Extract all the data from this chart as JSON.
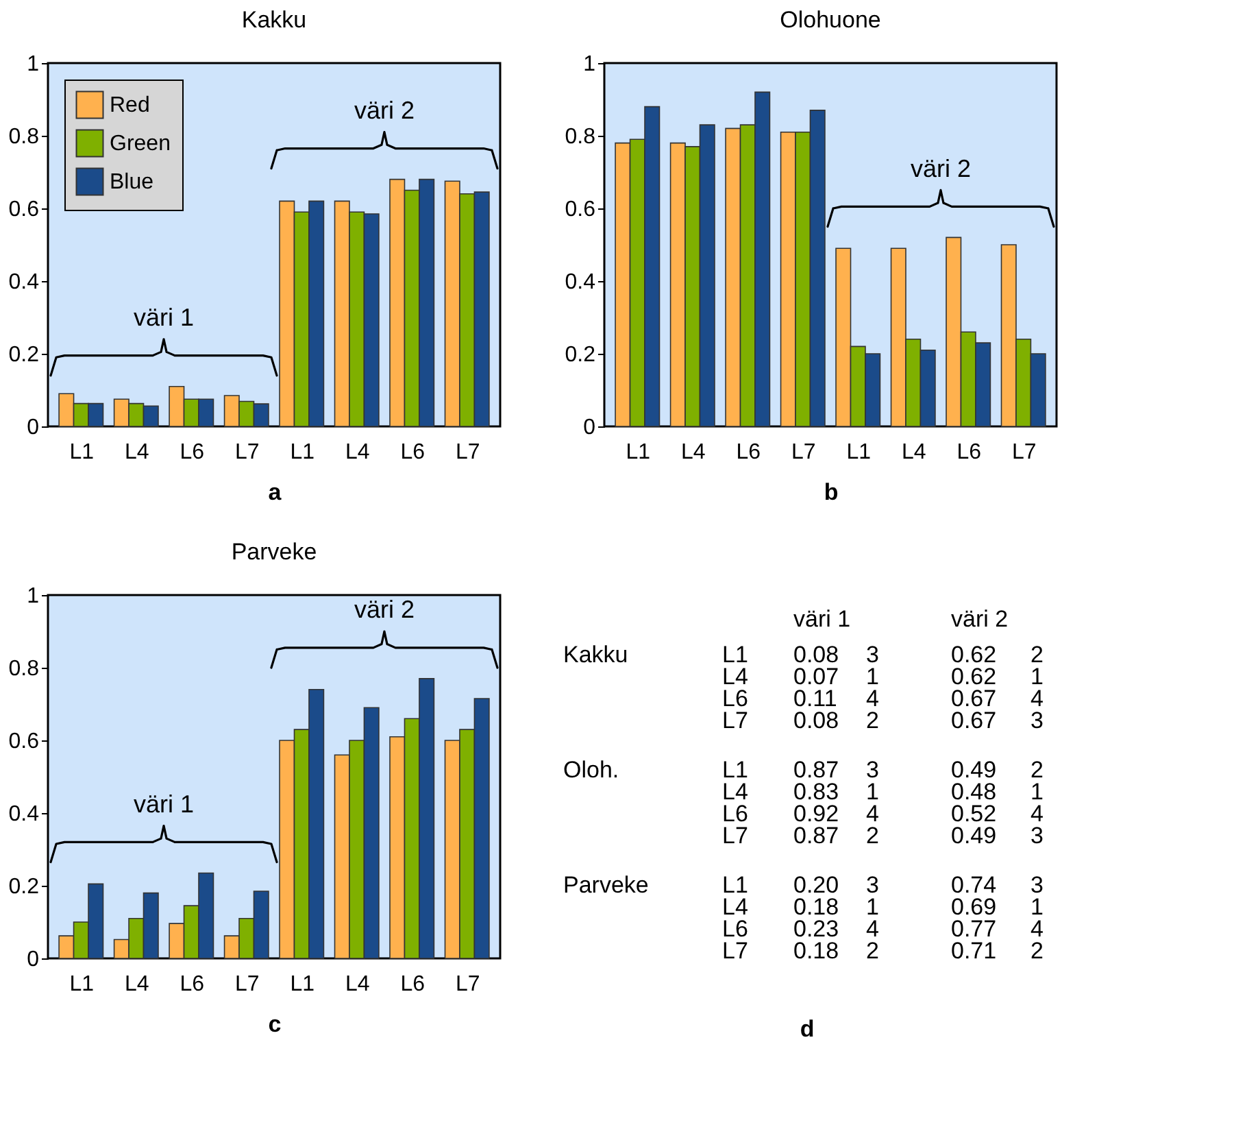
{
  "chart_data": [
    {
      "type": "bar",
      "title": "Kakku",
      "xlabel": "a",
      "categories": [
        "L1",
        "L4",
        "L6",
        "L7",
        "L1",
        "L4",
        "L6",
        "L7"
      ],
      "ylim": [
        0,
        1
      ],
      "yticks": [
        0,
        0.2,
        0.4,
        0.6,
        0.8,
        1
      ],
      "legend": "top left",
      "annotations": [
        "väri 1",
        "väri 2"
      ],
      "series": [
        {
          "name": "Red",
          "color": "#ffb14e",
          "values": [
            0.09,
            0.075,
            0.11,
            0.085,
            0.62,
            0.62,
            0.68,
            0.675
          ]
        },
        {
          "name": "Green",
          "color": "#7fb000",
          "values": [
            0.063,
            0.063,
            0.075,
            0.069,
            0.59,
            0.59,
            0.65,
            0.64
          ]
        },
        {
          "name": "Blue",
          "color": "#1b4b8a",
          "values": [
            0.063,
            0.056,
            0.075,
            0.062,
            0.62,
            0.585,
            0.68,
            0.645
          ]
        }
      ]
    },
    {
      "type": "bar",
      "title": "Olohuone",
      "xlabel": "b",
      "categories": [
        "L1",
        "L4",
        "L6",
        "L7",
        "L1",
        "L4",
        "L6",
        "L7"
      ],
      "ylim": [
        0,
        1
      ],
      "yticks": [
        0,
        0.2,
        0.4,
        0.6,
        0.8,
        1
      ],
      "annotations": [
        "väri 2"
      ],
      "series": [
        {
          "color": "#ffb14e",
          "values": [
            0.78,
            0.78,
            0.82,
            0.81,
            0.49,
            0.49,
            0.52,
            0.5
          ]
        },
        {
          "color": "#7fb000",
          "values": [
            0.79,
            0.77,
            0.83,
            0.81,
            0.22,
            0.24,
            0.26,
            0.24
          ]
        },
        {
          "color": "#1b4b8a",
          "values": [
            0.88,
            0.83,
            0.92,
            0.87,
            0.2,
            0.21,
            0.23,
            0.2
          ]
        }
      ]
    },
    {
      "type": "bar",
      "title": "Parveke",
      "xlabel": "c",
      "categories": [
        "L1",
        "L4",
        "L6",
        "L7",
        "L1",
        "L4",
        "L6",
        "L7"
      ],
      "ylim": [
        0,
        1
      ],
      "yticks": [
        0,
        0.2,
        0.4,
        0.6,
        0.8,
        1
      ],
      "annotations": [
        "väri 1",
        "väri 2"
      ],
      "series": [
        {
          "color": "#ffb14e",
          "values": [
            0.062,
            0.052,
            0.096,
            0.062,
            0.6,
            0.56,
            0.61,
            0.6
          ]
        },
        {
          "color": "#7fb000",
          "values": [
            0.1,
            0.11,
            0.145,
            0.11,
            0.63,
            0.6,
            0.66,
            0.63
          ]
        },
        {
          "color": "#1b4b8a",
          "values": [
            0.205,
            0.18,
            0.235,
            0.185,
            0.74,
            0.69,
            0.77,
            0.715
          ]
        }
      ]
    },
    {
      "type": "other",
      "xlabel": "d",
      "annotations": [
        "väri 1",
        "väri 2",
        "Kakku",
        "L1",
        "0.08",
        "3",
        "0.62",
        "2",
        "L4",
        "0.07",
        "1",
        "0.62",
        "1",
        "L6",
        "0.11",
        "4",
        "0.67",
        "4",
        "L7",
        "0.08",
        "2",
        "0.67",
        "3",
        "Oloh.",
        "L1",
        "0.87",
        "3",
        "0.49",
        "2",
        "L4",
        "0.83",
        "1",
        "0.48",
        "1",
        "L6",
        "0.92",
        "4",
        "0.52",
        "4",
        "L7",
        "0.87",
        "2",
        "0.49",
        "3",
        "Parveke",
        "L1",
        "0.20",
        "3",
        "0.74",
        "3",
        "L4",
        "0.18",
        "1",
        "0.69",
        "1",
        "L6",
        "0.23",
        "4",
        "0.77",
        "4",
        "L7",
        "0.18",
        "2",
        "0.71",
        "2"
      ]
    }
  ]
}
